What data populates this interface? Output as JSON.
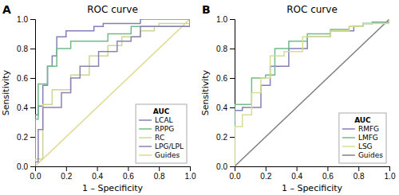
{
  "chart_data": [
    {
      "type": "step",
      "title": "ROC curve",
      "xlabel": "1 – Specificity",
      "ylabel": "Sensitivity",
      "annotations": [
        "A"
      ],
      "legend_title": "AUC",
      "legend": "lower right",
      "grid": false,
      "xlim": [
        0.0,
        1.0
      ],
      "ylim": [
        0.0,
        1.0
      ],
      "xticks": [
        {
          "value": 0.0,
          "label": "0.0"
        },
        0.2,
        0.4,
        0.6,
        0.8,
        {
          "value": 1.0,
          "label": "1.0"
        }
      ],
      "yticks": [
        {
          "value": 0.0,
          "label": "0.0"
        },
        0.2,
        0.4,
        0.6,
        0.8,
        {
          "value": 1.0,
          "label": "1.0"
        }
      ],
      "series": [
        {
          "name": "LCAL",
          "color": "#8080b8",
          "x": [
            0.0,
            0.0,
            0.02,
            0.02,
            0.05,
            0.05,
            0.08,
            0.08,
            0.11,
            0.11,
            0.14,
            0.14,
            0.17,
            0.2,
            0.2,
            0.23,
            0.26,
            0.29,
            0.35,
            0.38,
            0.41,
            0.44,
            0.47,
            0.5,
            0.53,
            0.59,
            0.62,
            0.65,
            0.68,
            1.0
          ],
          "values": [
            0.0,
            0.35,
            0.35,
            0.41,
            0.41,
            0.55,
            0.55,
            0.68,
            0.68,
            0.75,
            0.75,
            0.88,
            0.88,
            0.88,
            0.92,
            0.92,
            0.92,
            0.92,
            0.92,
            0.95,
            0.95,
            0.97,
            0.97,
            0.97,
            0.97,
            0.97,
            0.97,
            0.97,
            1.0,
            1.0
          ]
        },
        {
          "name": "RPPG",
          "color": "#70bb88",
          "x": [
            0.0,
            0.0,
            0.02,
            0.02,
            0.05,
            0.08,
            0.08,
            0.11,
            0.14,
            0.14,
            0.17,
            0.2,
            0.23,
            0.23,
            0.26,
            0.32,
            0.38,
            0.44,
            0.47,
            0.53,
            0.59,
            0.62,
            1.0
          ],
          "values": [
            0.0,
            0.32,
            0.32,
            0.56,
            0.56,
            0.56,
            0.68,
            0.68,
            0.68,
            0.8,
            0.8,
            0.8,
            0.8,
            0.85,
            0.85,
            0.85,
            0.85,
            0.85,
            0.9,
            0.9,
            0.9,
            0.95,
            1.0
          ]
        },
        {
          "name": "RC",
          "color": "#c8d890",
          "x": [
            0.0,
            0.0,
            0.05,
            0.05,
            0.08,
            0.11,
            0.11,
            0.17,
            0.2,
            0.23,
            0.26,
            0.32,
            0.35,
            0.41,
            0.47,
            0.53,
            0.56,
            0.62,
            0.68,
            0.74,
            0.77,
            0.8,
            1.0
          ],
          "values": [
            0.0,
            0.05,
            0.05,
            0.42,
            0.42,
            0.42,
            0.52,
            0.52,
            0.52,
            0.62,
            0.62,
            0.62,
            0.75,
            0.75,
            0.82,
            0.82,
            0.88,
            0.88,
            0.92,
            0.92,
            0.95,
            0.97,
            1.0
          ]
        },
        {
          "name": "LPG/LPL",
          "color": "#9080b0",
          "x": [
            0.0,
            0.0,
            0.02,
            0.02,
            0.05,
            0.05,
            0.08,
            0.11,
            0.14,
            0.17,
            0.2,
            0.23,
            0.26,
            0.29,
            0.32,
            0.38,
            0.41,
            0.47,
            0.53,
            0.62,
            0.68,
            1.0
          ],
          "values": [
            0.0,
            0.03,
            0.03,
            0.25,
            0.25,
            0.4,
            0.4,
            0.4,
            0.4,
            0.5,
            0.5,
            0.6,
            0.6,
            0.68,
            0.68,
            0.68,
            0.78,
            0.78,
            0.85,
            0.88,
            0.95,
            1.0
          ]
        },
        {
          "name": "Guides",
          "color": "#e0d890",
          "type": "line",
          "x": [
            0,
            1
          ],
          "values": [
            0,
            1
          ]
        }
      ]
    },
    {
      "type": "step",
      "title": "ROC curve",
      "xlabel": "1 – Specificity",
      "ylabel": "Sensitivity",
      "annotations": [
        "B"
      ],
      "legend_title": "AUC",
      "legend": "lower right",
      "grid": false,
      "xlim": [
        0.0,
        1.0
      ],
      "ylim": [
        0.0,
        1.0
      ],
      "xticks": [
        {
          "value": 0.0,
          "label": "0.0"
        },
        0.2,
        0.4,
        0.6,
        0.8,
        {
          "value": 1.0,
          "label": "1.0"
        }
      ],
      "yticks": [
        {
          "value": 0.0,
          "label": "0.0"
        },
        0.2,
        0.4,
        0.6,
        0.8,
        {
          "value": 1.0,
          "label": "1.0"
        }
      ],
      "series": [
        {
          "name": "RMFG",
          "color": "#8080b8",
          "x": [
            0.0,
            0.0,
            0.02,
            0.05,
            0.05,
            0.08,
            0.11,
            0.14,
            0.17,
            0.2,
            0.23,
            0.26,
            0.32,
            0.35,
            0.41,
            0.47,
            0.53,
            0.62,
            0.71,
            0.77,
            0.83,
            0.89,
            1.0
          ],
          "values": [
            0.0,
            0.38,
            0.38,
            0.38,
            0.4,
            0.4,
            0.4,
            0.4,
            0.55,
            0.55,
            0.68,
            0.68,
            0.68,
            0.8,
            0.8,
            0.88,
            0.88,
            0.92,
            0.92,
            0.95,
            0.97,
            0.98,
            1.0
          ]
        },
        {
          "name": "LMFG",
          "color": "#70bb88",
          "x": [
            0.0,
            0.0,
            0.02,
            0.05,
            0.08,
            0.11,
            0.11,
            0.14,
            0.17,
            0.2,
            0.23,
            0.26,
            0.32,
            0.35,
            0.41,
            0.47,
            0.53,
            0.62,
            0.74,
            0.83,
            0.89,
            1.0
          ],
          "values": [
            0.0,
            0.42,
            0.42,
            0.42,
            0.42,
            0.42,
            0.6,
            0.6,
            0.6,
            0.62,
            0.62,
            0.8,
            0.8,
            0.85,
            0.85,
            0.9,
            0.9,
            0.93,
            0.95,
            0.97,
            0.98,
            1.0
          ]
        },
        {
          "name": "LSG",
          "color": "#d8dc90",
          "x": [
            0.0,
            0.0,
            0.02,
            0.05,
            0.08,
            0.11,
            0.14,
            0.17,
            0.2,
            0.23,
            0.26,
            0.32,
            0.38,
            0.44,
            0.53,
            0.62,
            0.74,
            0.83,
            1.0
          ],
          "values": [
            0.0,
            0.27,
            0.27,
            0.35,
            0.35,
            0.5,
            0.5,
            0.6,
            0.6,
            0.75,
            0.75,
            0.78,
            0.78,
            0.88,
            0.88,
            0.92,
            0.95,
            0.97,
            1.0
          ]
        },
        {
          "name": "Guides",
          "color": "#808080",
          "type": "line",
          "x": [
            0,
            1
          ],
          "values": [
            0,
            1
          ]
        }
      ]
    }
  ]
}
